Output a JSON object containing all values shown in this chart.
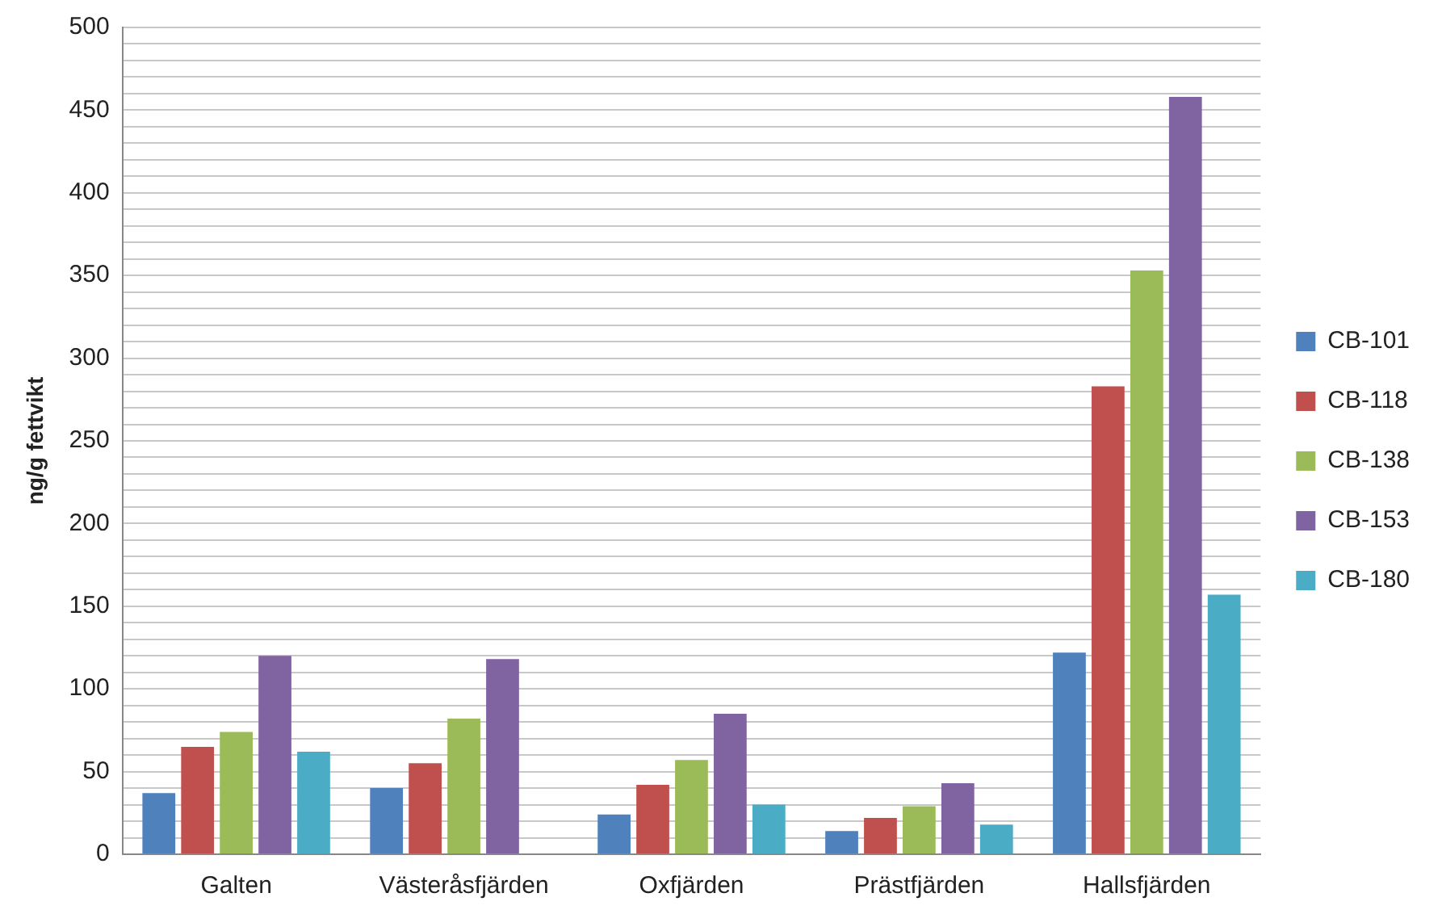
{
  "chart_data": {
    "type": "bar",
    "ylabel": "ng/g fettvikt",
    "categories": [
      "Galten",
      "Västeråsfjärden",
      "Oxfjärden",
      "Prästfjärden",
      "Hallsfjärden"
    ],
    "series": [
      {
        "name": "CB-101",
        "color": "#4f81bd",
        "values": [
          37,
          40,
          24,
          14,
          122
        ]
      },
      {
        "name": "CB-118",
        "color": "#c0504d",
        "values": [
          65,
          55,
          42,
          22,
          283
        ]
      },
      {
        "name": "CB-138",
        "color": "#9bbb59",
        "values": [
          74,
          82,
          57,
          29,
          353
        ]
      },
      {
        "name": "CB-153",
        "color": "#8064a2",
        "values": [
          120,
          118,
          85,
          43,
          458
        ]
      },
      {
        "name": "CB-180",
        "color": "#4bacc6",
        "values": [
          62,
          null,
          30,
          18,
          157
        ]
      }
    ],
    "ylim": [
      0,
      500
    ],
    "yticks": [
      0,
      {
        "value": 10,
        "label": null
      },
      {
        "value": 20,
        "label": null
      },
      {
        "value": 30,
        "label": null
      },
      {
        "value": 40,
        "label": null
      },
      50,
      {
        "value": 60,
        "label": null
      },
      {
        "value": 70,
        "label": null
      },
      {
        "value": 80,
        "label": null
      },
      {
        "value": 90,
        "label": null
      },
      100,
      {
        "value": 110,
        "label": null
      },
      {
        "value": 120,
        "label": null
      },
      {
        "value": 130,
        "label": null
      },
      {
        "value": 140,
        "label": null
      },
      150,
      {
        "value": 160,
        "label": null
      },
      {
        "value": 170,
        "label": null
      },
      {
        "value": 180,
        "label": null
      },
      {
        "value": 190,
        "label": null
      },
      200,
      {
        "value": 210,
        "label": null
      },
      {
        "value": 220,
        "label": null
      },
      {
        "value": 230,
        "label": null
      },
      {
        "value": 240,
        "label": null
      },
      250,
      {
        "value": 260,
        "label": null
      },
      {
        "value": 270,
        "label": null
      },
      {
        "value": 280,
        "label": null
      },
      {
        "value": 290,
        "label": null
      },
      300,
      {
        "value": 310,
        "label": null
      },
      {
        "value": 320,
        "label": null
      },
      {
        "value": 330,
        "label": null
      },
      {
        "value": 340,
        "label": null
      },
      350,
      {
        "value": 360,
        "label": null
      },
      {
        "value": 370,
        "label": null
      },
      {
        "value": 380,
        "label": null
      },
      {
        "value": 390,
        "label": null
      },
      400,
      {
        "value": 410,
        "label": null
      },
      {
        "value": 420,
        "label": null
      },
      {
        "value": 430,
        "label": null
      },
      {
        "value": 440,
        "label": null
      },
      450,
      {
        "value": 460,
        "label": null
      },
      {
        "value": 470,
        "label": null
      },
      {
        "value": 480,
        "label": null
      },
      {
        "value": 490,
        "label": null
      },
      500
    ],
    "grid": "y",
    "legend": "right"
  }
}
